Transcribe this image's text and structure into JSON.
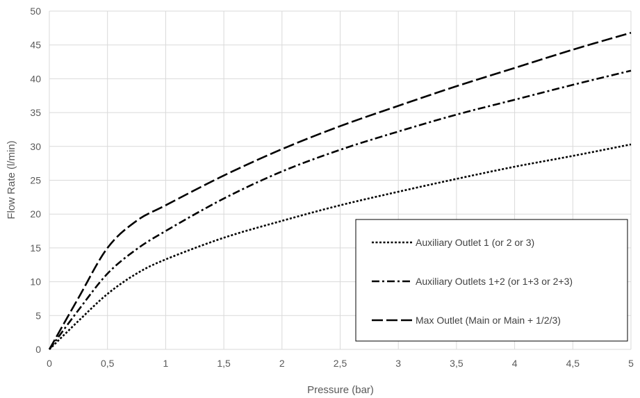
{
  "chart_data": {
    "type": "line",
    "xlabel": "Pressure (bar)",
    "ylabel": "Flow Rate (l/min)",
    "xlim": [
      0,
      5
    ],
    "ylim": [
      0,
      50
    ],
    "x_ticks": [
      "0",
      "0,5",
      "1",
      "1,5",
      "2",
      "2,5",
      "3",
      "3,5",
      "4",
      "4,5",
      "5"
    ],
    "y_ticks": [
      "0",
      "5",
      "10",
      "15",
      "20",
      "25",
      "30",
      "35",
      "40",
      "45",
      "50"
    ],
    "grid": true,
    "legend_position": "bottom-right",
    "series": [
      {
        "name": "Auxiliary Outlet 1 (or 2 or 3)",
        "dash": "dotted",
        "x": [
          0,
          0.25,
          0.5,
          0.75,
          1,
          1.5,
          2,
          2.5,
          3,
          3.5,
          4,
          4.5,
          5
        ],
        "y": [
          0,
          4.2,
          8.2,
          11.2,
          13.3,
          16.5,
          19.0,
          21.3,
          23.3,
          25.2,
          27.0,
          28.6,
          30.3
        ]
      },
      {
        "name": "Auxiliary Outlets 1+2 (or 1+3 or 2+3)",
        "dash": "dash-dot",
        "x": [
          0,
          0.25,
          0.5,
          0.75,
          1,
          1.5,
          2,
          2.5,
          3,
          3.5,
          4,
          4.5,
          5
        ],
        "y": [
          0,
          5.8,
          11.2,
          14.8,
          17.5,
          22.3,
          26.3,
          29.5,
          32.2,
          34.7,
          36.9,
          39.1,
          41.2
        ]
      },
      {
        "name": "Max Outlet (Main or Main + 1/2/3)",
        "dash": "long-dash",
        "x": [
          0,
          0.25,
          0.5,
          0.75,
          1,
          1.5,
          2,
          2.5,
          3,
          3.5,
          4,
          4.5,
          5
        ],
        "y": [
          0,
          7.6,
          15.0,
          19.0,
          21.3,
          25.7,
          29.6,
          33.0,
          36.0,
          38.9,
          41.6,
          44.3,
          46.8
        ]
      }
    ]
  }
}
